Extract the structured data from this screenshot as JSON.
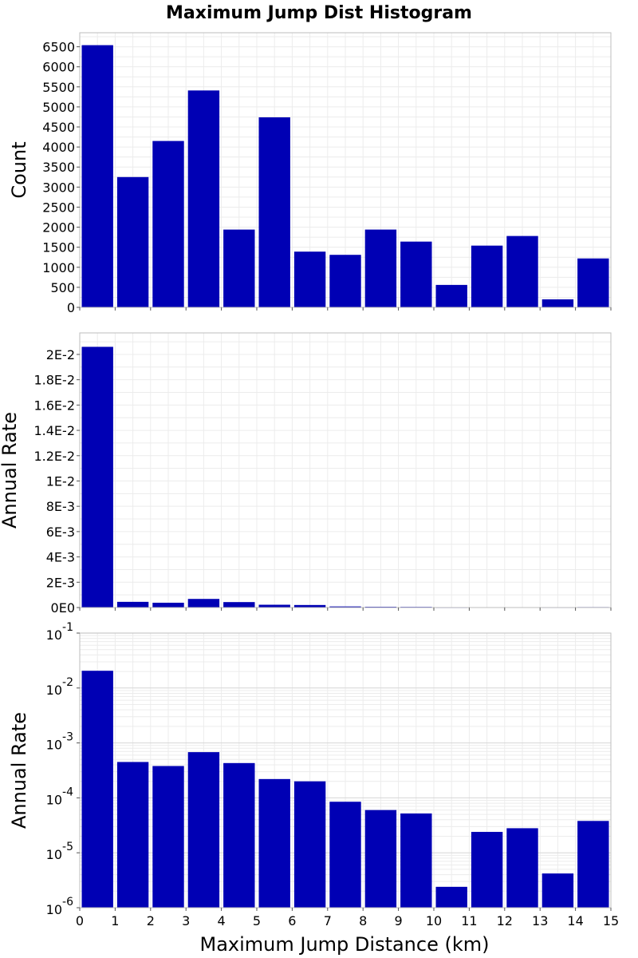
{
  "chart_data": {
    "type": "bar",
    "title": "Maximum Jump Dist Histogram",
    "xlabel": "Maximum Jump Distance (km)",
    "xlim": [
      0,
      15
    ],
    "x_ticks": [
      "0",
      "1",
      "2",
      "3",
      "4",
      "5",
      "6",
      "7",
      "8",
      "9",
      "10",
      "11",
      "12",
      "13",
      "14",
      "15"
    ],
    "bins": [
      0.5,
      1.5,
      2.5,
      3.5,
      4.5,
      5.5,
      6.5,
      7.5,
      8.5,
      9.5,
      10.5,
      11.5,
      12.5,
      13.5,
      14.5
    ],
    "bar_color": "#0000b4",
    "panels": [
      {
        "ylabel": "Count",
        "scale": "linear",
        "ylim": [
          0,
          6850
        ],
        "y_ticks": [
          0,
          500,
          1000,
          1500,
          2000,
          2500,
          3000,
          3500,
          4000,
          4500,
          5000,
          5500,
          6000,
          6500
        ],
        "y_tick_labels": [
          "0",
          "500",
          "1000",
          "1500",
          "2000",
          "2500",
          "3000",
          "3500",
          "4000",
          "4500",
          "5000",
          "5500",
          "6000",
          "6500"
        ],
        "values": [
          6540,
          3250,
          4150,
          5410,
          1940,
          4740,
          1390,
          1310,
          1940,
          1640,
          560,
          1540,
          1780,
          200,
          1220
        ]
      },
      {
        "ylabel": "Annual Rate",
        "scale": "linear",
        "ylim": [
          0,
          0.0217
        ],
        "y_ticks": [
          0,
          0.002,
          0.004,
          0.006,
          0.008,
          0.01,
          0.012,
          0.014,
          0.016,
          0.018,
          0.02
        ],
        "y_tick_labels": [
          "0E0",
          "2E-3",
          "4E-3",
          "6E-3",
          "8E-3",
          "1E-2",
          "1.2E-2",
          "1.4E-2",
          "1.6E-2",
          "1.8E-2",
          "2E-2"
        ],
        "values": [
          0.0206,
          0.00045,
          0.00038,
          0.00068,
          0.00043,
          0.00022,
          0.0002,
          8.5e-05,
          6e-05,
          5.2e-05,
          2.4e-06,
          2.4e-05,
          2.8e-05,
          4.2e-06,
          3.8e-05
        ]
      },
      {
        "ylabel": "Annual Rate",
        "scale": "log",
        "ylim": [
          1e-06,
          0.1
        ],
        "y_ticks": [
          1e-06,
          1e-05,
          0.0001,
          0.001,
          0.01,
          0.1
        ],
        "y_tick_base": [
          "10",
          "10",
          "10",
          "10",
          "10",
          "10"
        ],
        "y_tick_exp": [
          "-6",
          "-5",
          "-4",
          "-3",
          "-2",
          "-1"
        ],
        "values": [
          0.0206,
          0.00045,
          0.00038,
          0.00068,
          0.00043,
          0.00022,
          0.0002,
          8.5e-05,
          6e-05,
          5.2e-05,
          2.4e-06,
          2.4e-05,
          2.8e-05,
          4.2e-06,
          3.8e-05
        ]
      }
    ]
  }
}
